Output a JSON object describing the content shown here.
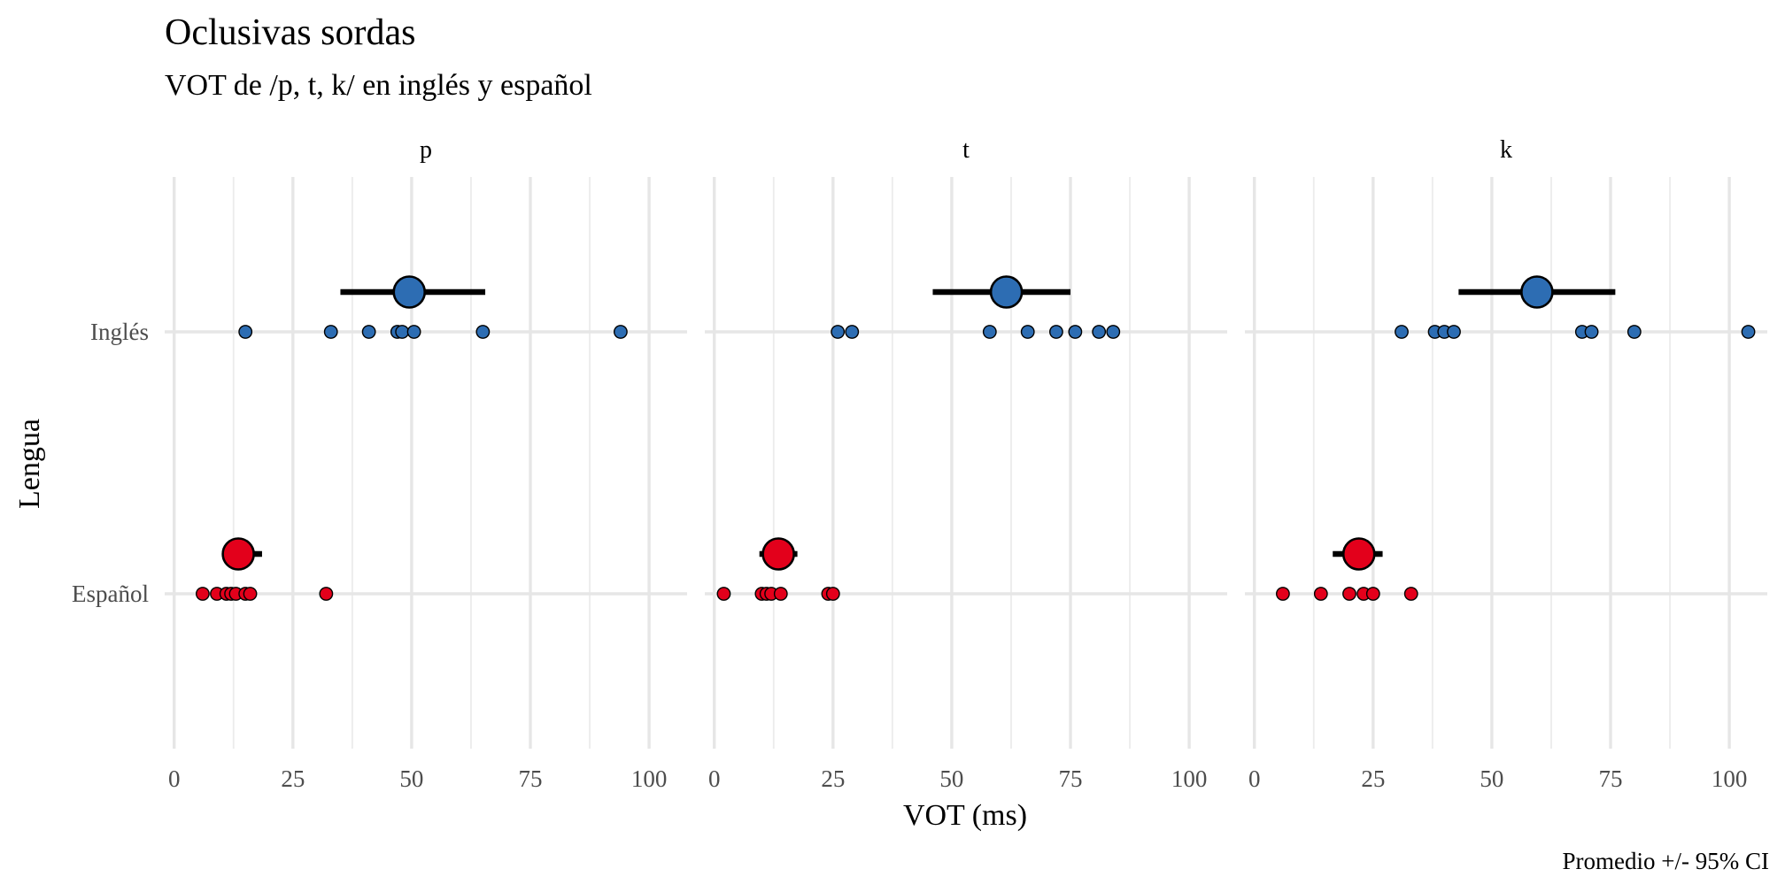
{
  "chart_data": {
    "type": "scatter",
    "title": "Oclusivas sordas",
    "subtitle": "VOT de /p, t, k/ en inglés y español",
    "xlabel": "VOT (ms)",
    "ylabel": "Lengua",
    "caption": "Promedio +/- 95% CI",
    "xlim": [
      -2,
      108
    ],
    "x_ticks": [
      0,
      25,
      50,
      75,
      100
    ],
    "y_categories": [
      "Español",
      "Inglés"
    ],
    "grid": true,
    "legend": "none",
    "colors": {
      "Inglés": "#2d6db3",
      "Español": "#e3001b"
    },
    "panels": [
      {
        "label": "p",
        "series": [
          {
            "lengua": "Inglés",
            "points": [
              15,
              33,
              41,
              47,
              48,
              50.5,
              65,
              94
            ],
            "mean": 49.5,
            "ci": [
              35,
              65.5
            ]
          },
          {
            "lengua": "Español",
            "points": [
              6,
              9,
              11,
              12,
              13,
              15,
              16,
              32
            ],
            "mean": 13.5,
            "ci": [
              13,
              18.5
            ]
          }
        ]
      },
      {
        "label": "t",
        "series": [
          {
            "lengua": "Inglés",
            "points": [
              26,
              29,
              58,
              66,
              72,
              76,
              81,
              84
            ],
            "mean": 61.5,
            "ci": [
              46,
              75
            ]
          },
          {
            "lengua": "Español",
            "points": [
              2,
              10,
              11,
              12,
              14,
              24,
              25
            ],
            "mean": 13.5,
            "ci": [
              9.5,
              17.5
            ]
          }
        ]
      },
      {
        "label": "k",
        "series": [
          {
            "lengua": "Inglés",
            "points": [
              31,
              38,
              40,
              42,
              69,
              71,
              80,
              104
            ],
            "mean": 59.5,
            "ci": [
              43,
              76
            ]
          },
          {
            "lengua": "Español",
            "points": [
              6,
              14,
              20,
              23,
              25,
              33
            ],
            "mean": 22,
            "ci": [
              16.5,
              27
            ]
          }
        ]
      }
    ]
  }
}
